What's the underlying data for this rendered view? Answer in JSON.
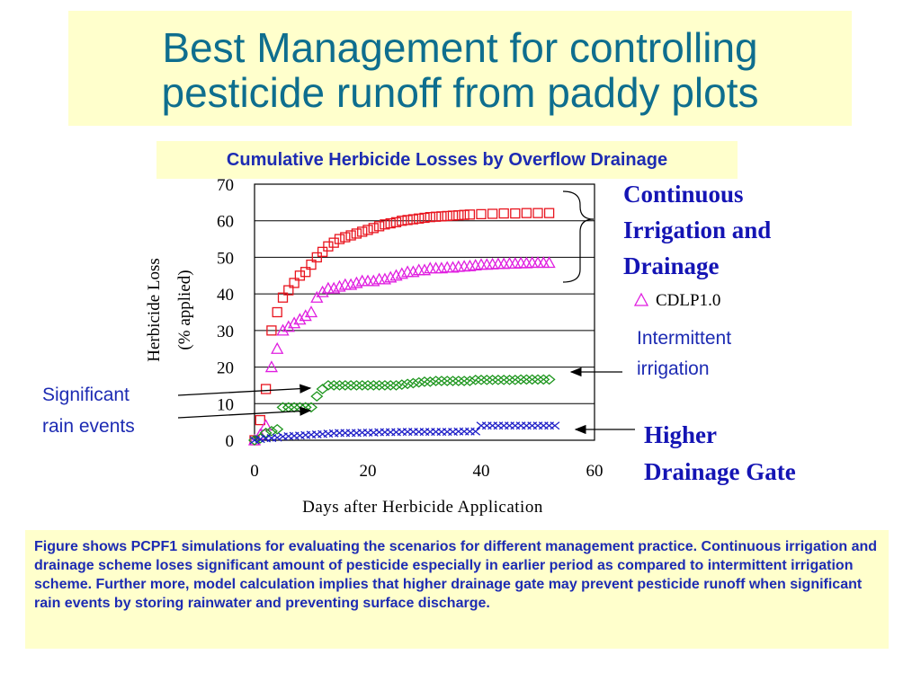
{
  "slide": {
    "title_lines": [
      "Best Management for controlling",
      "pesticide runoff from paddy plots"
    ],
    "caption": "Figure shows PCPF1 simulations for evaluating the scenarios for different management practice. Continuous irrigation and drainage scheme loses significant amount of pesticide especially in earlier period as compared to intermittent irrigation scheme. Further more, model calculation implies that higher drainage gate may prevent pesticide runoff when significant rain events by storing rainwater and preventing surface discharge."
  },
  "annotations": {
    "continuous_lines": [
      "Continuous",
      "Irrigation and",
      "Drainage"
    ],
    "intermittent_lines": [
      "Intermittent",
      "irrigation"
    ],
    "rain_lines": [
      "Significant",
      "rain events"
    ],
    "gate_lines": [
      "Higher",
      "Drainage Gate"
    ]
  },
  "colors": {
    "title": "#0e6e8e",
    "text_blue": "#1d2bb3",
    "annotation_blue": "#1414b4",
    "panel_yellow": "#ffffcc",
    "series_red": "#e8141e",
    "series_magenta": "#e01ee0",
    "series_green": "#1e961e",
    "series_blue": "#1e1ec8"
  },
  "chart_data": {
    "type": "scatter",
    "title": "Cumulative Herbicide Losses by Overflow Drainage",
    "xlabel": "Days after Herbicide Application",
    "ylabel_lines": [
      "Herbicide Loss",
      "(% applied)"
    ],
    "xlim": [
      0,
      60
    ],
    "ylim": [
      0,
      70
    ],
    "x_ticks": [
      0,
      20,
      40,
      60
    ],
    "y_ticks": [
      0,
      10,
      20,
      30,
      40,
      50,
      60,
      70
    ],
    "grid": "horizontal",
    "legend": [
      {
        "label": "CDLP1.0",
        "marker": "triangle"
      }
    ],
    "series": [
      {
        "marker": "square",
        "color": "#e8141e",
        "x": [
          0,
          1,
          2,
          3,
          4,
          5,
          6,
          7,
          8,
          9,
          10,
          11,
          12,
          13,
          14,
          15,
          16,
          17,
          18,
          19,
          20,
          21,
          22,
          23,
          24,
          25,
          26,
          27,
          28,
          29,
          30,
          31,
          32,
          33,
          34,
          35,
          36,
          37,
          38,
          40,
          42,
          44,
          46,
          48,
          50,
          52
        ],
        "y": [
          0,
          5.5,
          14,
          30,
          35,
          39,
          41,
          43,
          45,
          46,
          48,
          50,
          51.5,
          53,
          54,
          55,
          55.5,
          56,
          56.5,
          57,
          57.5,
          58,
          58.5,
          59,
          59.3,
          59.6,
          60,
          60.2,
          60.4,
          60.6,
          60.8,
          61,
          61.1,
          61.2,
          61.3,
          61.4,
          61.5,
          61.6,
          61.7,
          61.8,
          61.9,
          62,
          62,
          62.1,
          62.1,
          62.1
        ]
      },
      {
        "marker": "triangle",
        "color": "#e01ee0",
        "x": [
          0,
          1,
          2,
          3,
          4,
          5,
          6,
          7,
          8,
          9,
          10,
          11,
          12,
          13,
          14,
          15,
          16,
          17,
          18,
          19,
          20,
          21,
          22,
          23,
          24,
          25,
          26,
          27,
          28,
          29,
          30,
          31,
          32,
          33,
          34,
          35,
          36,
          37,
          38,
          39,
          40,
          41,
          42,
          43,
          44,
          45,
          46,
          47,
          48,
          49,
          50,
          51,
          52
        ],
        "y": [
          0,
          1.5,
          4,
          20,
          25,
          30,
          31,
          32,
          33,
          34,
          35,
          39,
          40.5,
          41.5,
          41.5,
          42,
          42.5,
          42.5,
          43,
          43.5,
          43.5,
          43.5,
          44,
          44,
          44.5,
          45,
          45.5,
          46,
          46,
          46.5,
          46.5,
          47,
          47,
          47,
          47.2,
          47.2,
          47.4,
          47.5,
          47.6,
          47.8,
          48,
          48,
          48.1,
          48.2,
          48.2,
          48.3,
          48.3,
          48.4,
          48.4,
          48.5,
          48.5,
          48.5,
          48.5
        ]
      },
      {
        "marker": "diamond",
        "color": "#1e961e",
        "x": [
          0,
          1,
          2,
          3,
          4,
          5,
          6,
          7,
          8,
          9,
          10,
          11,
          12,
          13,
          14,
          15,
          16,
          17,
          18,
          19,
          20,
          21,
          22,
          23,
          24,
          25,
          26,
          27,
          28,
          29,
          30,
          31,
          32,
          33,
          34,
          35,
          36,
          37,
          38,
          39,
          40,
          41,
          42,
          43,
          44,
          45,
          46,
          47,
          48,
          49,
          50,
          51,
          52
        ],
        "y": [
          0,
          0.5,
          2,
          2.5,
          3,
          9,
          9,
          9,
          9,
          9,
          9,
          12,
          14,
          15,
          15,
          15,
          15,
          15,
          15,
          15,
          15,
          15,
          15,
          15,
          15,
          15,
          15.2,
          15.4,
          15.6,
          15.8,
          16,
          16,
          16.2,
          16.2,
          16.2,
          16.2,
          16.2,
          16.2,
          16.2,
          16.5,
          16.5,
          16.5,
          16.5,
          16.5,
          16.5,
          16.5,
          16.5,
          16.6,
          16.6,
          16.6,
          16.6,
          16.6,
          16.6
        ]
      },
      {
        "marker": "x",
        "color": "#1e1ec8",
        "x": [
          0,
          1,
          2,
          3,
          4,
          5,
          6,
          7,
          8,
          9,
          10,
          11,
          12,
          13,
          14,
          15,
          16,
          17,
          18,
          19,
          20,
          21,
          22,
          23,
          24,
          25,
          26,
          27,
          28,
          29,
          30,
          31,
          32,
          33,
          34,
          35,
          36,
          37,
          38,
          39,
          40,
          41,
          42,
          43,
          44,
          45,
          46,
          47,
          48,
          49,
          50,
          51,
          52,
          53
        ],
        "y": [
          0,
          0.3,
          0.5,
          0.6,
          0.7,
          1,
          1.1,
          1.2,
          1.3,
          1.4,
          1.5,
          1.6,
          1.7,
          1.8,
          1.9,
          2,
          2,
          2,
          2,
          2.1,
          2.1,
          2.1,
          2.2,
          2.2,
          2.2,
          2.2,
          2.3,
          2.3,
          2.3,
          2.3,
          2.3,
          2.3,
          2.3,
          2.3,
          2.3,
          2.3,
          2.4,
          2.4,
          2.4,
          2.4,
          4,
          4,
          4,
          4,
          4,
          4,
          4,
          4,
          4,
          4,
          4,
          4,
          4,
          4
        ]
      }
    ]
  }
}
